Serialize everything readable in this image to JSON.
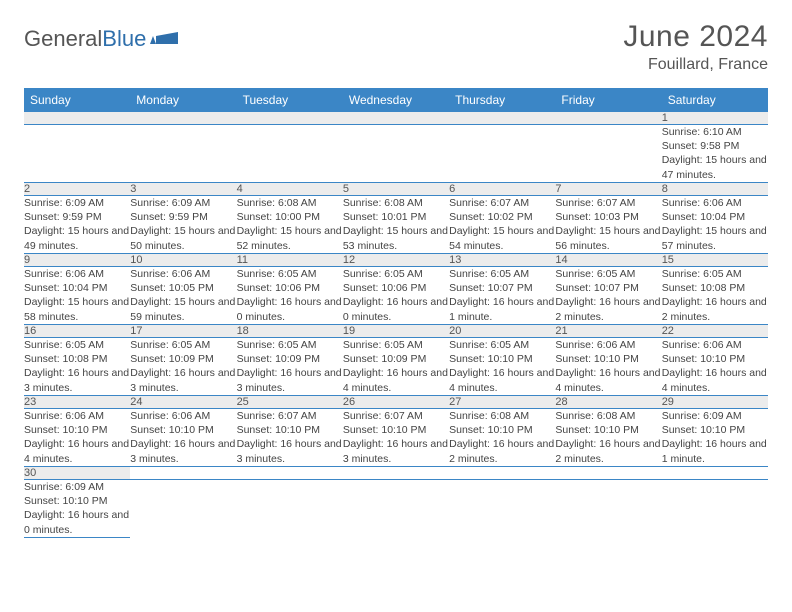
{
  "logo": {
    "text_a": "General",
    "text_b": "Blue"
  },
  "title": "June 2024",
  "subtitle": "Fouillard, France",
  "colors": {
    "header_bg": "#3b86c6",
    "header_text": "#ffffff",
    "daynum_bg": "#ececec",
    "border": "#3b86c6",
    "body_text": "#444444",
    "title_text": "#555555"
  },
  "weekdays": [
    "Sunday",
    "Monday",
    "Tuesday",
    "Wednesday",
    "Thursday",
    "Friday",
    "Saturday"
  ],
  "weeks": [
    [
      null,
      null,
      null,
      null,
      null,
      null,
      {
        "d": "1",
        "sunrise": "Sunrise: 6:10 AM",
        "sunset": "Sunset: 9:58 PM",
        "daylight": "Daylight: 15 hours and 47 minutes."
      }
    ],
    [
      {
        "d": "2",
        "sunrise": "Sunrise: 6:09 AM",
        "sunset": "Sunset: 9:59 PM",
        "daylight": "Daylight: 15 hours and 49 minutes."
      },
      {
        "d": "3",
        "sunrise": "Sunrise: 6:09 AM",
        "sunset": "Sunset: 9:59 PM",
        "daylight": "Daylight: 15 hours and 50 minutes."
      },
      {
        "d": "4",
        "sunrise": "Sunrise: 6:08 AM",
        "sunset": "Sunset: 10:00 PM",
        "daylight": "Daylight: 15 hours and 52 minutes."
      },
      {
        "d": "5",
        "sunrise": "Sunrise: 6:08 AM",
        "sunset": "Sunset: 10:01 PM",
        "daylight": "Daylight: 15 hours and 53 minutes."
      },
      {
        "d": "6",
        "sunrise": "Sunrise: 6:07 AM",
        "sunset": "Sunset: 10:02 PM",
        "daylight": "Daylight: 15 hours and 54 minutes."
      },
      {
        "d": "7",
        "sunrise": "Sunrise: 6:07 AM",
        "sunset": "Sunset: 10:03 PM",
        "daylight": "Daylight: 15 hours and 56 minutes."
      },
      {
        "d": "8",
        "sunrise": "Sunrise: 6:06 AM",
        "sunset": "Sunset: 10:04 PM",
        "daylight": "Daylight: 15 hours and 57 minutes."
      }
    ],
    [
      {
        "d": "9",
        "sunrise": "Sunrise: 6:06 AM",
        "sunset": "Sunset: 10:04 PM",
        "daylight": "Daylight: 15 hours and 58 minutes."
      },
      {
        "d": "10",
        "sunrise": "Sunrise: 6:06 AM",
        "sunset": "Sunset: 10:05 PM",
        "daylight": "Daylight: 15 hours and 59 minutes."
      },
      {
        "d": "11",
        "sunrise": "Sunrise: 6:05 AM",
        "sunset": "Sunset: 10:06 PM",
        "daylight": "Daylight: 16 hours and 0 minutes."
      },
      {
        "d": "12",
        "sunrise": "Sunrise: 6:05 AM",
        "sunset": "Sunset: 10:06 PM",
        "daylight": "Daylight: 16 hours and 0 minutes."
      },
      {
        "d": "13",
        "sunrise": "Sunrise: 6:05 AM",
        "sunset": "Sunset: 10:07 PM",
        "daylight": "Daylight: 16 hours and 1 minute."
      },
      {
        "d": "14",
        "sunrise": "Sunrise: 6:05 AM",
        "sunset": "Sunset: 10:07 PM",
        "daylight": "Daylight: 16 hours and 2 minutes."
      },
      {
        "d": "15",
        "sunrise": "Sunrise: 6:05 AM",
        "sunset": "Sunset: 10:08 PM",
        "daylight": "Daylight: 16 hours and 2 minutes."
      }
    ],
    [
      {
        "d": "16",
        "sunrise": "Sunrise: 6:05 AM",
        "sunset": "Sunset: 10:08 PM",
        "daylight": "Daylight: 16 hours and 3 minutes."
      },
      {
        "d": "17",
        "sunrise": "Sunrise: 6:05 AM",
        "sunset": "Sunset: 10:09 PM",
        "daylight": "Daylight: 16 hours and 3 minutes."
      },
      {
        "d": "18",
        "sunrise": "Sunrise: 6:05 AM",
        "sunset": "Sunset: 10:09 PM",
        "daylight": "Daylight: 16 hours and 3 minutes."
      },
      {
        "d": "19",
        "sunrise": "Sunrise: 6:05 AM",
        "sunset": "Sunset: 10:09 PM",
        "daylight": "Daylight: 16 hours and 4 minutes."
      },
      {
        "d": "20",
        "sunrise": "Sunrise: 6:05 AM",
        "sunset": "Sunset: 10:10 PM",
        "daylight": "Daylight: 16 hours and 4 minutes."
      },
      {
        "d": "21",
        "sunrise": "Sunrise: 6:06 AM",
        "sunset": "Sunset: 10:10 PM",
        "daylight": "Daylight: 16 hours and 4 minutes."
      },
      {
        "d": "22",
        "sunrise": "Sunrise: 6:06 AM",
        "sunset": "Sunset: 10:10 PM",
        "daylight": "Daylight: 16 hours and 4 minutes."
      }
    ],
    [
      {
        "d": "23",
        "sunrise": "Sunrise: 6:06 AM",
        "sunset": "Sunset: 10:10 PM",
        "daylight": "Daylight: 16 hours and 4 minutes."
      },
      {
        "d": "24",
        "sunrise": "Sunrise: 6:06 AM",
        "sunset": "Sunset: 10:10 PM",
        "daylight": "Daylight: 16 hours and 3 minutes."
      },
      {
        "d": "25",
        "sunrise": "Sunrise: 6:07 AM",
        "sunset": "Sunset: 10:10 PM",
        "daylight": "Daylight: 16 hours and 3 minutes."
      },
      {
        "d": "26",
        "sunrise": "Sunrise: 6:07 AM",
        "sunset": "Sunset: 10:10 PM",
        "daylight": "Daylight: 16 hours and 3 minutes."
      },
      {
        "d": "27",
        "sunrise": "Sunrise: 6:08 AM",
        "sunset": "Sunset: 10:10 PM",
        "daylight": "Daylight: 16 hours and 2 minutes."
      },
      {
        "d": "28",
        "sunrise": "Sunrise: 6:08 AM",
        "sunset": "Sunset: 10:10 PM",
        "daylight": "Daylight: 16 hours and 2 minutes."
      },
      {
        "d": "29",
        "sunrise": "Sunrise: 6:09 AM",
        "sunset": "Sunset: 10:10 PM",
        "daylight": "Daylight: 16 hours and 1 minute."
      }
    ],
    [
      {
        "d": "30",
        "sunrise": "Sunrise: 6:09 AM",
        "sunset": "Sunset: 10:10 PM",
        "daylight": "Daylight: 16 hours and 0 minutes."
      },
      null,
      null,
      null,
      null,
      null,
      null
    ]
  ]
}
